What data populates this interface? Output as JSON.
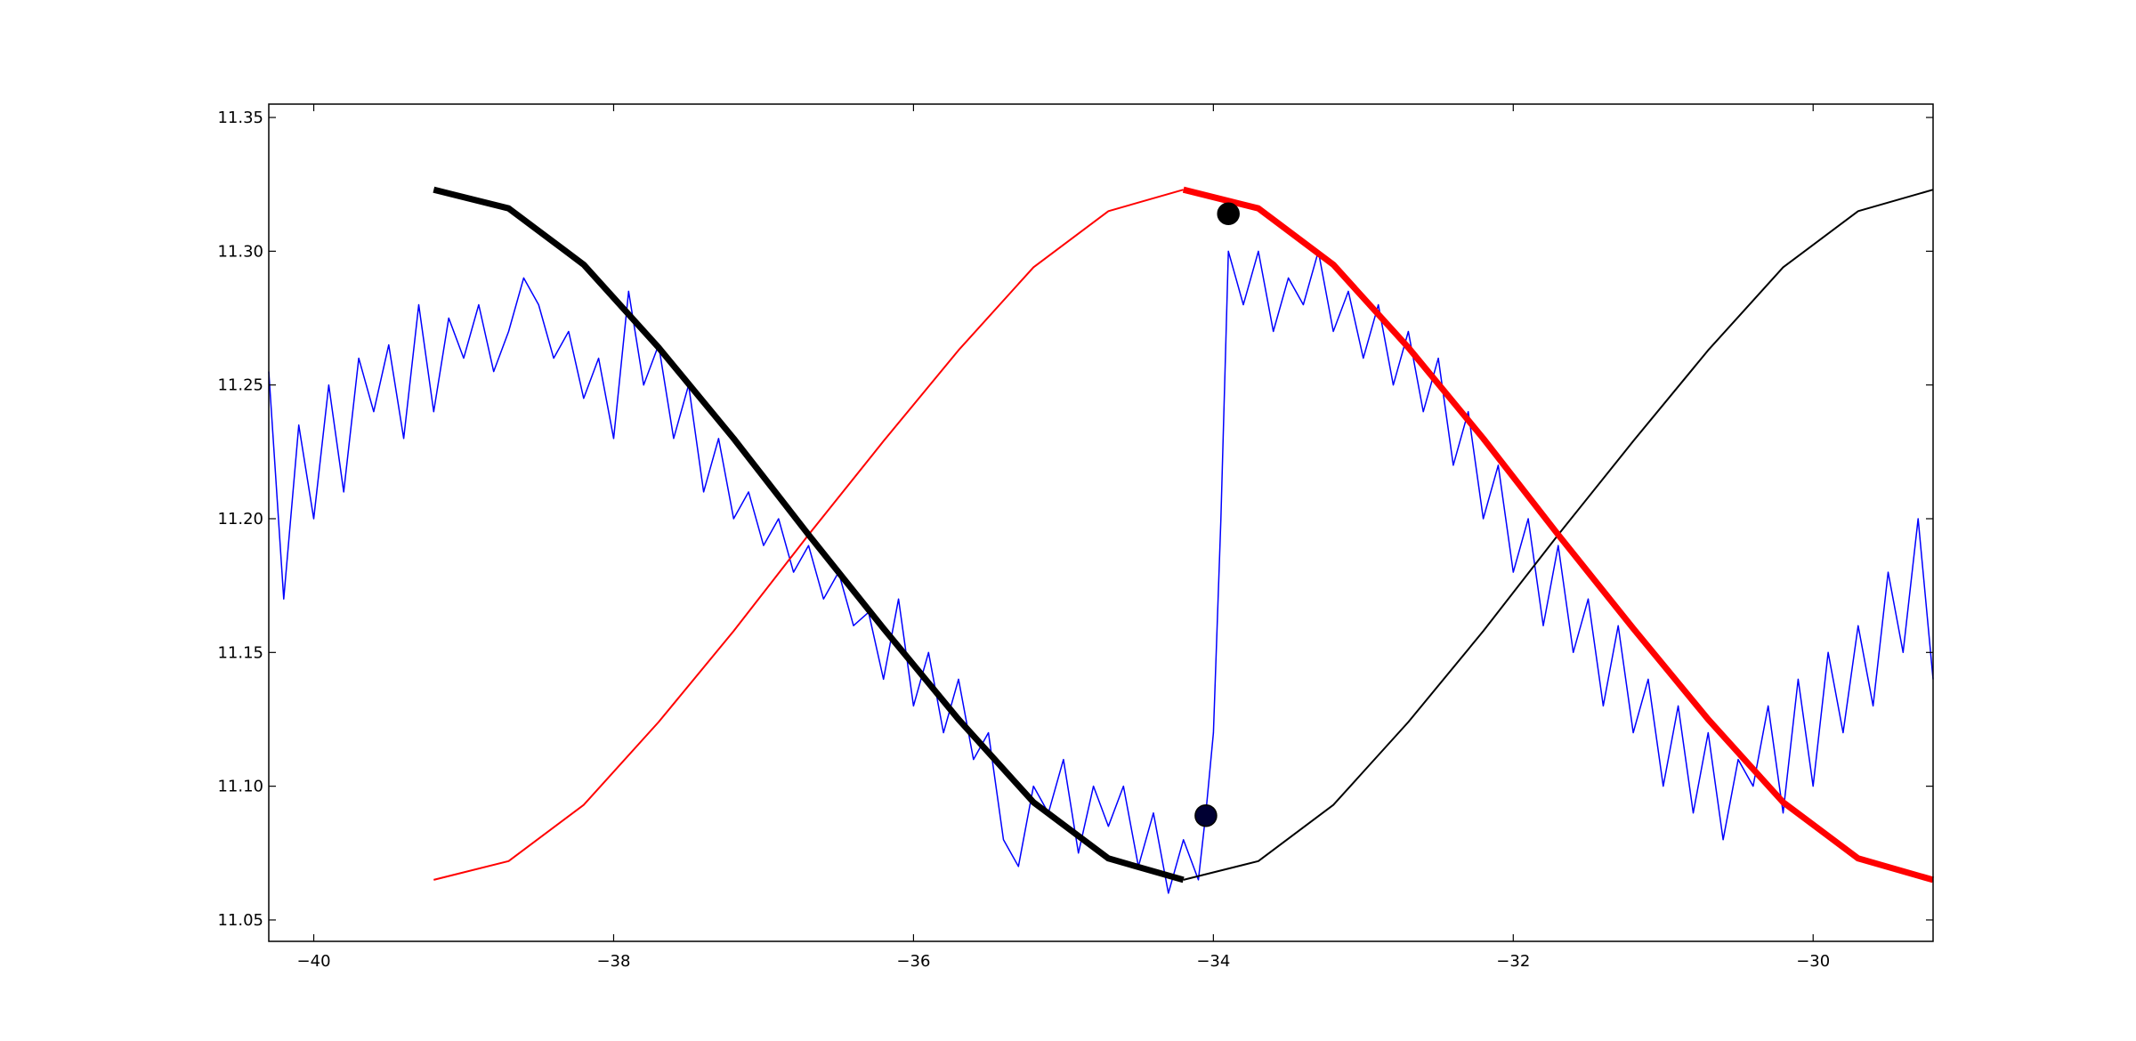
{
  "chart_data": {
    "type": "line",
    "title": "",
    "xlabel": "",
    "ylabel": "",
    "xlim": [
      -40.3,
      -29.2
    ],
    "ylim": [
      11.042,
      11.355
    ],
    "grid": false,
    "legend": "none",
    "x_ticks": [
      {
        "value": -40,
        "label": "−40"
      },
      {
        "value": -38,
        "label": "−38"
      },
      {
        "value": -36,
        "label": "−36"
      },
      {
        "value": -34,
        "label": "−34"
      },
      {
        "value": -32,
        "label": "−32"
      },
      {
        "value": -30,
        "label": "−30"
      }
    ],
    "y_ticks": [
      {
        "value": 11.05,
        "label": "11.05"
      },
      {
        "value": 11.1,
        "label": "11.10"
      },
      {
        "value": 11.15,
        "label": "11.15"
      },
      {
        "value": 11.2,
        "label": "11.20"
      },
      {
        "value": 11.25,
        "label": "11.25"
      },
      {
        "value": 11.3,
        "label": "11.30"
      },
      {
        "value": 11.35,
        "label": "11.35"
      }
    ],
    "series": [
      {
        "style": "noisy",
        "color": "#0000ff",
        "x": [
          -40.3,
          -40.2,
          -40.1,
          -40.0,
          -39.9,
          -39.8,
          -39.7,
          -39.6,
          -39.5,
          -39.4,
          -39.3,
          -39.2,
          -39.1,
          -39.0,
          -38.9,
          -38.8,
          -38.7,
          -38.6,
          -38.5,
          -38.4,
          -38.3,
          -38.2,
          -38.1,
          -38.0,
          -37.9,
          -37.8,
          -37.7,
          -37.6,
          -37.5,
          -37.4,
          -37.3,
          -37.2,
          -37.1,
          -37.0,
          -36.9,
          -36.8,
          -36.7,
          -36.6,
          -36.5,
          -36.4,
          -36.3,
          -36.2,
          -36.1,
          -36.0,
          -35.9,
          -35.8,
          -35.7,
          -35.6,
          -35.5,
          -35.4,
          -35.3,
          -35.2,
          -35.1,
          -35.0,
          -34.9,
          -34.8,
          -34.7,
          -34.6,
          -34.5,
          -34.4,
          -34.3,
          -34.2,
          -34.1,
          -34.05,
          -34.0,
          -33.95,
          -33.9,
          -33.85,
          -33.8,
          -33.7,
          -33.6,
          -33.5,
          -33.4,
          -33.3,
          -33.2,
          -33.1,
          -33.0,
          -32.9,
          -32.8,
          -32.7,
          -32.6,
          -32.5,
          -32.4,
          -32.3,
          -32.2,
          -32.1,
          -32.0,
          -31.9,
          -31.8,
          -31.7,
          -31.6,
          -31.5,
          -31.4,
          -31.3,
          -31.2,
          -31.1,
          -31.0,
          -30.9,
          -30.8,
          -30.7,
          -30.6,
          -30.5,
          -30.4,
          -30.3,
          -30.2,
          -30.1,
          -30.0,
          -29.9,
          -29.8,
          -29.7,
          -29.6,
          -29.5,
          -29.4,
          -29.3,
          -29.2
        ],
        "y": [
          11.255,
          11.17,
          11.235,
          11.2,
          11.25,
          11.21,
          11.26,
          11.24,
          11.265,
          11.23,
          11.28,
          11.24,
          11.275,
          11.26,
          11.28,
          11.255,
          11.27,
          11.29,
          11.28,
          11.26,
          11.27,
          11.245,
          11.26,
          11.23,
          11.285,
          11.25,
          11.265,
          11.23,
          11.25,
          11.21,
          11.23,
          11.2,
          11.21,
          11.19,
          11.2,
          11.18,
          11.19,
          11.17,
          11.18,
          11.16,
          11.165,
          11.14,
          11.17,
          11.13,
          11.15,
          11.12,
          11.14,
          11.11,
          11.12,
          11.08,
          11.07,
          11.1,
          11.09,
          11.11,
          11.075,
          11.1,
          11.085,
          11.1,
          11.07,
          11.09,
          11.06,
          11.08,
          11.065,
          11.09,
          11.12,
          11.2,
          11.3,
          11.29,
          11.28,
          11.3,
          11.27,
          11.29,
          11.28,
          11.3,
          11.27,
          11.285,
          11.26,
          11.28,
          11.25,
          11.27,
          11.24,
          11.26,
          11.22,
          11.24,
          11.2,
          11.22,
          11.18,
          11.2,
          11.16,
          11.19,
          11.15,
          11.17,
          11.13,
          11.16,
          11.12,
          11.14,
          11.1,
          11.13,
          11.09,
          11.12,
          11.08,
          11.11,
          11.1,
          11.13,
          11.09,
          11.14,
          11.1,
          11.15,
          11.12,
          11.16,
          11.13,
          11.18,
          11.15,
          11.2,
          11.14
        ]
      },
      {
        "style": "thin",
        "color": "#ff0000",
        "x": [
          -39.2,
          -38.7,
          -38.2,
          -37.7,
          -37.2,
          -36.7,
          -36.2,
          -35.7,
          -35.2,
          -34.7,
          -34.2
        ],
        "y": [
          11.065,
          11.072,
          11.093,
          11.124,
          11.158,
          11.194,
          11.229,
          11.263,
          11.294,
          11.315,
          11.323
        ]
      },
      {
        "style": "thick",
        "color": "#000000",
        "x": [
          -39.2,
          -38.7,
          -38.2,
          -37.7,
          -37.2,
          -36.7,
          -36.2,
          -35.7,
          -35.2,
          -34.7,
          -34.2
        ],
        "y": [
          11.323,
          11.316,
          11.295,
          11.264,
          11.23,
          11.194,
          11.159,
          11.125,
          11.094,
          11.073,
          11.065
        ]
      },
      {
        "style": "thin",
        "color": "#000000",
        "x": [
          -34.2,
          -33.7,
          -33.2,
          -32.7,
          -32.2,
          -31.7,
          -31.2,
          -30.7,
          -30.2,
          -29.7,
          -29.2
        ],
        "y": [
          11.065,
          11.072,
          11.093,
          11.124,
          11.158,
          11.194,
          11.229,
          11.263,
          11.294,
          11.315,
          11.323
        ]
      },
      {
        "style": "thick",
        "color": "#ff0000",
        "x": [
          -34.2,
          -33.7,
          -33.2,
          -32.7,
          -32.2,
          -31.7,
          -31.2,
          -30.7,
          -30.2,
          -29.7,
          -29.2
        ],
        "y": [
          11.323,
          11.316,
          11.295,
          11.264,
          11.23,
          11.194,
          11.159,
          11.125,
          11.094,
          11.073,
          11.065
        ]
      }
    ],
    "markers": [
      {
        "x": -33.9,
        "y": 11.314,
        "color": "#000000"
      },
      {
        "x": -34.05,
        "y": 11.089,
        "color": "#000033"
      }
    ]
  }
}
